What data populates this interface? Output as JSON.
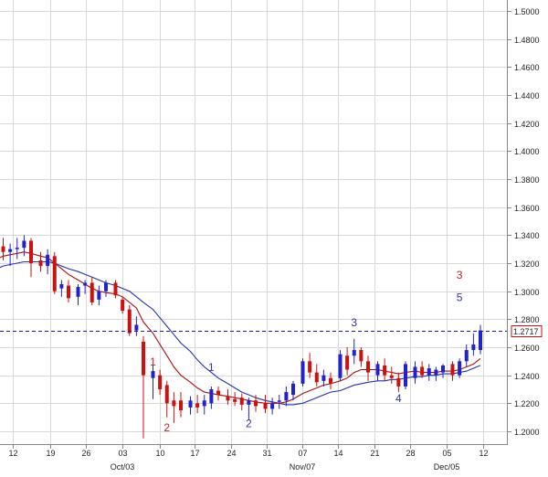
{
  "chart_data": {
    "type": "candlestick",
    "title": "",
    "xlabel": "",
    "ylabel": "",
    "ylim": [
      1.19,
      1.51
    ],
    "grid": true,
    "x_ticks": [
      "12",
      "19",
      "26",
      "03",
      "10",
      "17",
      "24",
      "31",
      "07",
      "14",
      "21",
      "28",
      "05",
      "12"
    ],
    "month_labels": [
      "Oct/03",
      "Nov/07",
      "Dec/05"
    ],
    "y_ticks": [
      "1.2000",
      "1.2200",
      "1.2400",
      "1.2600",
      "1.2800",
      "1.3000",
      "1.3200",
      "1.3400",
      "1.3600",
      "1.3800",
      "1.4000",
      "1.4200",
      "1.4400",
      "1.4600",
      "1.4800",
      "1.5000"
    ],
    "last_price": "1.2717",
    "colors": {
      "up": "#2222cc",
      "down": "#cc1111",
      "ma_fast": "#aa1111",
      "ma_slow": "#2233aa",
      "grid": "#d8d8d8",
      "ref_line": "#1a1aaa"
    },
    "candles": [
      {
        "date": "Sep 10",
        "open": 1.332,
        "high": 1.338,
        "low": 1.322,
        "close": 1.328
      },
      {
        "date": "Sep 11",
        "open": 1.328,
        "high": 1.334,
        "low": 1.318,
        "close": 1.33
      },
      {
        "date": "Sep 12",
        "open": 1.33,
        "high": 1.338,
        "low": 1.323,
        "close": 1.331
      },
      {
        "date": "Sep 13",
        "open": 1.331,
        "high": 1.34,
        "low": 1.325,
        "close": 1.336
      },
      {
        "date": "Sep 14",
        "open": 1.336,
        "high": 1.338,
        "low": 1.31,
        "close": 1.32
      },
      {
        "date": "Sep 17",
        "open": 1.322,
        "high": 1.328,
        "low": 1.314,
        "close": 1.318
      },
      {
        "date": "Sep 18",
        "open": 1.318,
        "high": 1.33,
        "low": 1.312,
        "close": 1.326
      },
      {
        "date": "Sep 19",
        "open": 1.325,
        "high": 1.328,
        "low": 1.298,
        "close": 1.3
      },
      {
        "date": "Sep 20",
        "open": 1.302,
        "high": 1.308,
        "low": 1.296,
        "close": 1.305
      },
      {
        "date": "Sep 21",
        "open": 1.304,
        "high": 1.308,
        "low": 1.292,
        "close": 1.295
      },
      {
        "date": "Sep 24",
        "open": 1.296,
        "high": 1.305,
        "low": 1.29,
        "close": 1.303
      },
      {
        "date": "Sep 25",
        "open": 1.304,
        "high": 1.308,
        "low": 1.298,
        "close": 1.306
      },
      {
        "date": "Sep 26",
        "open": 1.306,
        "high": 1.31,
        "low": 1.29,
        "close": 1.292
      },
      {
        "date": "Sep 27",
        "open": 1.294,
        "high": 1.304,
        "low": 1.29,
        "close": 1.3
      },
      {
        "date": "Sep 28",
        "open": 1.3,
        "high": 1.308,
        "low": 1.296,
        "close": 1.306
      },
      {
        "date": "Oct 01",
        "open": 1.306,
        "high": 1.308,
        "low": 1.295,
        "close": 1.297
      },
      {
        "date": "Oct 02",
        "open": 1.294,
        "high": 1.296,
        "low": 1.284,
        "close": 1.286
      },
      {
        "date": "Oct 03",
        "open": 1.287,
        "high": 1.29,
        "low": 1.268,
        "close": 1.27
      },
      {
        "date": "Oct 04",
        "open": 1.272,
        "high": 1.282,
        "low": 1.268,
        "close": 1.276
      },
      {
        "date": "Oct 05",
        "open": 1.264,
        "high": 1.268,
        "low": 1.195,
        "close": 1.24
      },
      {
        "date": "Oct 08",
        "open": 1.238,
        "high": 1.248,
        "low": 1.223,
        "close": 1.243
      },
      {
        "date": "Oct 09",
        "open": 1.24,
        "high": 1.244,
        "low": 1.226,
        "close": 1.23
      },
      {
        "date": "Oct 10",
        "open": 1.233,
        "high": 1.236,
        "low": 1.21,
        "close": 1.22
      },
      {
        "date": "Oct 11",
        "open": 1.222,
        "high": 1.228,
        "low": 1.206,
        "close": 1.218
      },
      {
        "date": "Oct 12",
        "open": 1.222,
        "high": 1.228,
        "low": 1.21,
        "close": 1.215
      },
      {
        "date": "Oct 15",
        "open": 1.217,
        "high": 1.225,
        "low": 1.212,
        "close": 1.222
      },
      {
        "date": "Oct 16",
        "open": 1.22,
        "high": 1.226,
        "low": 1.213,
        "close": 1.217
      },
      {
        "date": "Oct 17",
        "open": 1.218,
        "high": 1.226,
        "low": 1.212,
        "close": 1.222
      },
      {
        "date": "Oct 18",
        "open": 1.22,
        "high": 1.232,
        "low": 1.216,
        "close": 1.23
      },
      {
        "date": "Oct 19",
        "open": 1.229,
        "high": 1.232,
        "low": 1.222,
        "close": 1.226
      },
      {
        "date": "Oct 22",
        "open": 1.225,
        "high": 1.23,
        "low": 1.219,
        "close": 1.222
      },
      {
        "date": "Oct 23",
        "open": 1.223,
        "high": 1.228,
        "low": 1.218,
        "close": 1.221
      },
      {
        "date": "Oct 24",
        "open": 1.224,
        "high": 1.227,
        "low": 1.215,
        "close": 1.219
      },
      {
        "date": "Oct 25",
        "open": 1.219,
        "high": 1.224,
        "low": 1.208,
        "close": 1.222
      },
      {
        "date": "Oct 26",
        "open": 1.222,
        "high": 1.226,
        "low": 1.214,
        "close": 1.218
      },
      {
        "date": "Oct 29",
        "open": 1.22,
        "high": 1.226,
        "low": 1.213,
        "close": 1.216
      },
      {
        "date": "Oct 30",
        "open": 1.216,
        "high": 1.224,
        "low": 1.212,
        "close": 1.22
      },
      {
        "date": "Oct 31",
        "open": 1.221,
        "high": 1.226,
        "low": 1.216,
        "close": 1.222
      },
      {
        "date": "Nov 01",
        "open": 1.222,
        "high": 1.232,
        "low": 1.218,
        "close": 1.228
      },
      {
        "date": "Nov 02",
        "open": 1.226,
        "high": 1.236,
        "low": 1.222,
        "close": 1.234
      },
      {
        "date": "Nov 05",
        "open": 1.234,
        "high": 1.252,
        "low": 1.232,
        "close": 1.25
      },
      {
        "date": "Nov 06",
        "open": 1.25,
        "high": 1.256,
        "low": 1.238,
        "close": 1.242
      },
      {
        "date": "Nov 07",
        "open": 1.242,
        "high": 1.248,
        "low": 1.232,
        "close": 1.235
      },
      {
        "date": "Nov 08",
        "open": 1.236,
        "high": 1.244,
        "low": 1.232,
        "close": 1.24
      },
      {
        "date": "Nov 09",
        "open": 1.238,
        "high": 1.242,
        "low": 1.23,
        "close": 1.234
      },
      {
        "date": "Nov 12",
        "open": 1.238,
        "high": 1.258,
        "low": 1.236,
        "close": 1.255
      },
      {
        "date": "Nov 13",
        "open": 1.254,
        "high": 1.26,
        "low": 1.24,
        "close": 1.244
      },
      {
        "date": "Nov 14",
        "open": 1.254,
        "high": 1.266,
        "low": 1.248,
        "close": 1.258
      },
      {
        "date": "Nov 15",
        "open": 1.258,
        "high": 1.26,
        "low": 1.246,
        "close": 1.25
      },
      {
        "date": "Nov 16",
        "open": 1.25,
        "high": 1.254,
        "low": 1.236,
        "close": 1.242
      },
      {
        "date": "Nov 19",
        "open": 1.24,
        "high": 1.25,
        "low": 1.236,
        "close": 1.248
      },
      {
        "date": "Nov 20",
        "open": 1.247,
        "high": 1.252,
        "low": 1.236,
        "close": 1.24
      },
      {
        "date": "Nov 21",
        "open": 1.24,
        "high": 1.246,
        "low": 1.234,
        "close": 1.238
      },
      {
        "date": "Nov 22",
        "open": 1.238,
        "high": 1.242,
        "low": 1.228,
        "close": 1.232
      },
      {
        "date": "Nov 23",
        "open": 1.232,
        "high": 1.25,
        "low": 1.23,
        "close": 1.248
      },
      {
        "date": "Nov 26",
        "open": 1.238,
        "high": 1.25,
        "low": 1.234,
        "close": 1.246
      },
      {
        "date": "Nov 27",
        "open": 1.246,
        "high": 1.25,
        "low": 1.238,
        "close": 1.24
      },
      {
        "date": "Nov 28",
        "open": 1.24,
        "high": 1.248,
        "low": 1.236,
        "close": 1.245
      },
      {
        "date": "Nov 29",
        "open": 1.24,
        "high": 1.246,
        "low": 1.236,
        "close": 1.244
      },
      {
        "date": "Nov 30",
        "open": 1.242,
        "high": 1.248,
        "low": 1.238,
        "close": 1.247
      },
      {
        "date": "Dec 03",
        "open": 1.248,
        "high": 1.25,
        "low": 1.236,
        "close": 1.24
      },
      {
        "date": "Dec 04",
        "open": 1.24,
        "high": 1.252,
        "low": 1.238,
        "close": 1.25
      },
      {
        "date": "Dec 05",
        "open": 1.25,
        "high": 1.262,
        "low": 1.246,
        "close": 1.258
      },
      {
        "date": "Dec 06",
        "open": 1.258,
        "high": 1.27,
        "low": 1.254,
        "close": 1.262
      },
      {
        "date": "Dec 07",
        "open": 1.258,
        "high": 1.276,
        "low": 1.255,
        "close": 1.272
      }
    ],
    "ma_fast": [
      1.325,
      1.326,
      1.327,
      1.328,
      1.327,
      1.325,
      1.324,
      1.32,
      1.316,
      1.312,
      1.308,
      1.305,
      1.302,
      1.3,
      1.299,
      1.298,
      1.296,
      1.292,
      1.288,
      1.278,
      1.27,
      1.262,
      1.254,
      1.246,
      1.24,
      1.235,
      1.231,
      1.228,
      1.227,
      1.226,
      1.225,
      1.224,
      1.223,
      1.222,
      1.221,
      1.22,
      1.22,
      1.22,
      1.221,
      1.223,
      1.227,
      1.229,
      1.231,
      1.233,
      1.234,
      1.236,
      1.238,
      1.242,
      1.244,
      1.244,
      1.244,
      1.243,
      1.242,
      1.241,
      1.242,
      1.243,
      1.242,
      1.242,
      1.242,
      1.243,
      1.243,
      1.244,
      1.246,
      1.248,
      1.252
    ],
    "ma_slow": [
      1.318,
      1.319,
      1.32,
      1.321,
      1.321,
      1.321,
      1.321,
      1.32,
      1.318,
      1.316,
      1.314,
      1.312,
      1.31,
      1.308,
      1.306,
      1.304,
      1.302,
      1.3,
      1.296,
      1.292,
      1.287,
      1.281,
      1.275,
      1.269,
      1.263,
      1.257,
      1.251,
      1.246,
      1.242,
      1.238,
      1.234,
      1.231,
      1.228,
      1.226,
      1.224,
      1.222,
      1.221,
      1.22,
      1.219,
      1.219,
      1.22,
      1.222,
      1.224,
      1.226,
      1.228,
      1.229,
      1.231,
      1.233,
      1.234,
      1.235,
      1.236,
      1.236,
      1.237,
      1.237,
      1.238,
      1.239,
      1.239,
      1.24,
      1.24,
      1.241,
      1.241,
      1.242,
      1.243,
      1.245,
      1.247
    ],
    "annotations": [
      {
        "text": "1",
        "date": "Oct 08",
        "price": 1.247,
        "color": "#cc2222"
      },
      {
        "text": "2",
        "date": "Oct 10",
        "price": 1.2,
        "color": "#cc2222"
      },
      {
        "text": "1",
        "date": "Oct 18",
        "price": 1.243,
        "color": "#3333aa"
      },
      {
        "text": "2",
        "date": "Oct 25",
        "price": 1.203,
        "color": "#3333aa"
      },
      {
        "text": "3",
        "date": "Nov 14",
        "price": 1.275,
        "color": "#3333aa"
      },
      {
        "text": "4",
        "date": "Nov 22",
        "price": 1.221,
        "color": "#3333aa"
      },
      {
        "text": "3",
        "date": "Dec 04",
        "price": 1.309,
        "color": "#cc2222"
      },
      {
        "text": "5",
        "date": "Dec 04",
        "price": 1.293,
        "color": "#3333aa"
      }
    ]
  }
}
